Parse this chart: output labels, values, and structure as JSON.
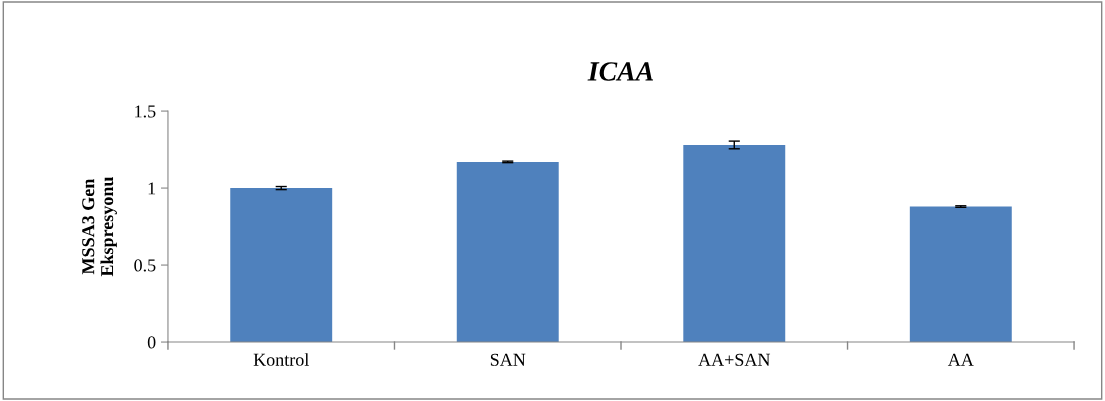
{
  "chart_data": {
    "type": "bar",
    "title": "ICAA",
    "ylabel": "MSSA3 Gen\nEkspresyonu",
    "categories": [
      "Kontrol",
      "SAN",
      "AA+SAN",
      "AA"
    ],
    "values": [
      1.0,
      1.17,
      1.28,
      0.88
    ],
    "errors": [
      0.01,
      0.005,
      0.025,
      0.005
    ],
    "color": "#4f81bd",
    "ylim": [
      0,
      1.5
    ],
    "yticks": [
      0,
      {
        "value": 0.5,
        "label": "0.5"
      },
      1,
      {
        "value": 1.5,
        "label": "1.5"
      }
    ],
    "grid": false
  }
}
